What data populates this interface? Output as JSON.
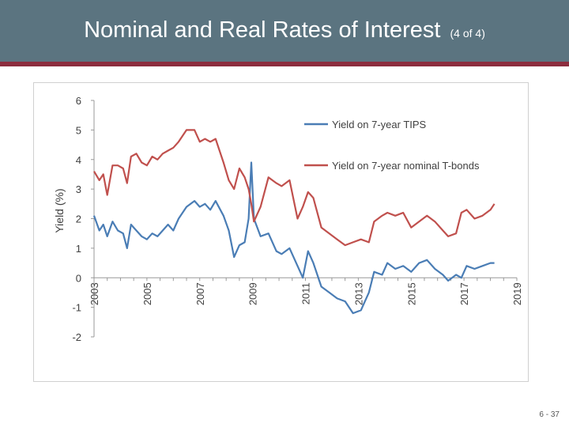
{
  "header": {
    "title": "Nominal and Real Rates of Interest",
    "subtitle": "(4 of 4)"
  },
  "footer": {
    "page_number": "6 - 37"
  },
  "chart_data": {
    "type": "line",
    "title": "",
    "xlabel": "",
    "ylabel": "Yield (%)",
    "xlim": [
      2003,
      2019
    ],
    "ylim": [
      -2,
      6
    ],
    "x_ticks": [
      "2003",
      "2005",
      "2007",
      "2009",
      "2011",
      "2013",
      "2015",
      "2017",
      "2019"
    ],
    "y_ticks": [
      "6",
      "5",
      "4",
      "3",
      "2",
      "1",
      "0",
      "-1",
      "-2"
    ],
    "grid": false,
    "legend_position": "top-right",
    "series": [
      {
        "name": "Yield on 7-year TIPS",
        "color": "#4a7db5",
        "points": [
          [
            2003.0,
            2.1
          ],
          [
            2003.2,
            1.6
          ],
          [
            2003.35,
            1.8
          ],
          [
            2003.5,
            1.4
          ],
          [
            2003.7,
            1.9
          ],
          [
            2003.9,
            1.6
          ],
          [
            2004.1,
            1.5
          ],
          [
            2004.25,
            1.0
          ],
          [
            2004.4,
            1.8
          ],
          [
            2004.6,
            1.6
          ],
          [
            2004.8,
            1.4
          ],
          [
            2005.0,
            1.3
          ],
          [
            2005.2,
            1.5
          ],
          [
            2005.4,
            1.4
          ],
          [
            2005.6,
            1.6
          ],
          [
            2005.8,
            1.8
          ],
          [
            2006.0,
            1.6
          ],
          [
            2006.2,
            2.0
          ],
          [
            2006.5,
            2.4
          ],
          [
            2006.8,
            2.6
          ],
          [
            2007.0,
            2.4
          ],
          [
            2007.2,
            2.5
          ],
          [
            2007.4,
            2.3
          ],
          [
            2007.6,
            2.6
          ],
          [
            2007.9,
            2.1
          ],
          [
            2008.1,
            1.6
          ],
          [
            2008.3,
            0.7
          ],
          [
            2008.5,
            1.1
          ],
          [
            2008.7,
            1.2
          ],
          [
            2008.85,
            2.0
          ],
          [
            2008.95,
            3.9
          ],
          [
            2009.05,
            2.0
          ],
          [
            2009.3,
            1.4
          ],
          [
            2009.6,
            1.5
          ],
          [
            2009.9,
            0.9
          ],
          [
            2010.1,
            0.8
          ],
          [
            2010.4,
            1.0
          ],
          [
            2010.7,
            0.4
          ],
          [
            2010.9,
            0.0
          ],
          [
            2011.1,
            0.9
          ],
          [
            2011.3,
            0.5
          ],
          [
            2011.6,
            -0.3
          ],
          [
            2011.9,
            -0.5
          ],
          [
            2012.2,
            -0.7
          ],
          [
            2012.5,
            -0.8
          ],
          [
            2012.8,
            -1.2
          ],
          [
            2013.1,
            -1.1
          ],
          [
            2013.4,
            -0.5
          ],
          [
            2013.6,
            0.2
          ],
          [
            2013.9,
            0.1
          ],
          [
            2014.1,
            0.5
          ],
          [
            2014.4,
            0.3
          ],
          [
            2014.7,
            0.4
          ],
          [
            2015.0,
            0.2
          ],
          [
            2015.3,
            0.5
          ],
          [
            2015.6,
            0.6
          ],
          [
            2015.9,
            0.3
          ],
          [
            2016.2,
            0.1
          ],
          [
            2016.4,
            -0.1
          ],
          [
            2016.7,
            0.1
          ],
          [
            2016.9,
            0.0
          ],
          [
            2017.1,
            0.4
          ],
          [
            2017.4,
            0.3
          ],
          [
            2017.7,
            0.4
          ],
          [
            2018.0,
            0.5
          ],
          [
            2018.15,
            0.5
          ]
        ]
      },
      {
        "name": "Yield on 7-year nominal T-bonds",
        "color": "#c0504d",
        "points": [
          [
            2003.0,
            3.6
          ],
          [
            2003.2,
            3.3
          ],
          [
            2003.35,
            3.5
          ],
          [
            2003.5,
            2.8
          ],
          [
            2003.7,
            3.8
          ],
          [
            2003.9,
            3.8
          ],
          [
            2004.1,
            3.7
          ],
          [
            2004.25,
            3.2
          ],
          [
            2004.4,
            4.1
          ],
          [
            2004.6,
            4.2
          ],
          [
            2004.8,
            3.9
          ],
          [
            2005.0,
            3.8
          ],
          [
            2005.2,
            4.1
          ],
          [
            2005.4,
            4.0
          ],
          [
            2005.6,
            4.2
          ],
          [
            2005.8,
            4.3
          ],
          [
            2006.0,
            4.4
          ],
          [
            2006.2,
            4.6
          ],
          [
            2006.5,
            5.0
          ],
          [
            2006.8,
            5.0
          ],
          [
            2007.0,
            4.6
          ],
          [
            2007.2,
            4.7
          ],
          [
            2007.4,
            4.6
          ],
          [
            2007.6,
            4.7
          ],
          [
            2007.9,
            3.9
          ],
          [
            2008.1,
            3.3
          ],
          [
            2008.3,
            3.0
          ],
          [
            2008.5,
            3.7
          ],
          [
            2008.7,
            3.4
          ],
          [
            2008.85,
            3.0
          ],
          [
            2008.95,
            2.5
          ],
          [
            2009.05,
            1.9
          ],
          [
            2009.3,
            2.4
          ],
          [
            2009.6,
            3.4
          ],
          [
            2009.9,
            3.2
          ],
          [
            2010.1,
            3.1
          ],
          [
            2010.4,
            3.3
          ],
          [
            2010.7,
            2.0
          ],
          [
            2010.9,
            2.4
          ],
          [
            2011.1,
            2.9
          ],
          [
            2011.3,
            2.7
          ],
          [
            2011.6,
            1.7
          ],
          [
            2011.9,
            1.5
          ],
          [
            2012.2,
            1.3
          ],
          [
            2012.5,
            1.1
          ],
          [
            2012.8,
            1.2
          ],
          [
            2013.1,
            1.3
          ],
          [
            2013.4,
            1.2
          ],
          [
            2013.6,
            1.9
          ],
          [
            2013.9,
            2.1
          ],
          [
            2014.1,
            2.2
          ],
          [
            2014.4,
            2.1
          ],
          [
            2014.7,
            2.2
          ],
          [
            2015.0,
            1.7
          ],
          [
            2015.3,
            1.9
          ],
          [
            2015.6,
            2.1
          ],
          [
            2015.9,
            1.9
          ],
          [
            2016.2,
            1.6
          ],
          [
            2016.4,
            1.4
          ],
          [
            2016.7,
            1.5
          ],
          [
            2016.9,
            2.2
          ],
          [
            2017.1,
            2.3
          ],
          [
            2017.4,
            2.0
          ],
          [
            2017.7,
            2.1
          ],
          [
            2018.0,
            2.3
          ],
          [
            2018.15,
            2.5
          ]
        ]
      }
    ]
  }
}
